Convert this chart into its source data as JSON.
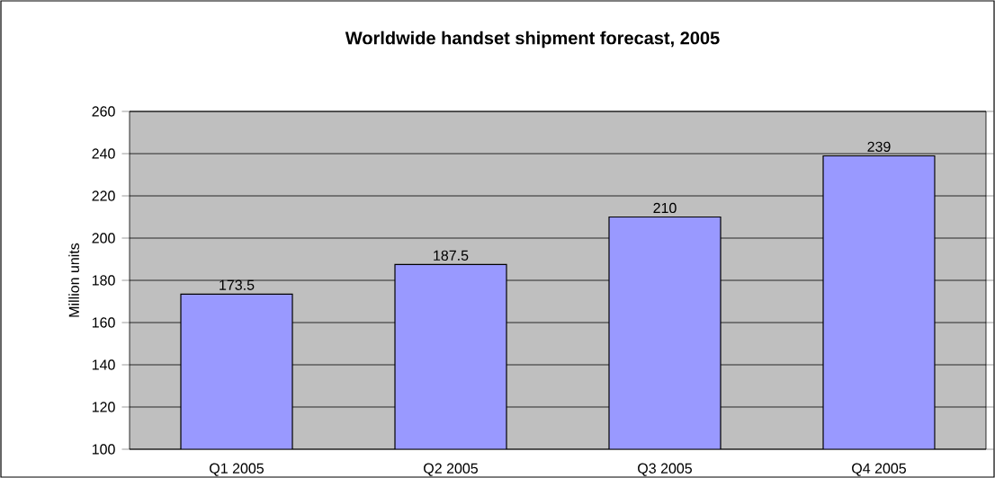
{
  "chart_data": {
    "type": "bar",
    "title": "Worldwide handset shipment forecast, 2005",
    "ylabel": "Million units",
    "categories": [
      "Q1 2005",
      "Q2 2005",
      "Q3 2005",
      "Q4 2005"
    ],
    "values": [
      173.5,
      187.5,
      210,
      239
    ],
    "color": "#9999ff",
    "ylim": [
      100,
      260
    ],
    "yticks": [
      100,
      120,
      140,
      160,
      180,
      200,
      220,
      240,
      260
    ],
    "grid": "y",
    "data_labels": true
  }
}
